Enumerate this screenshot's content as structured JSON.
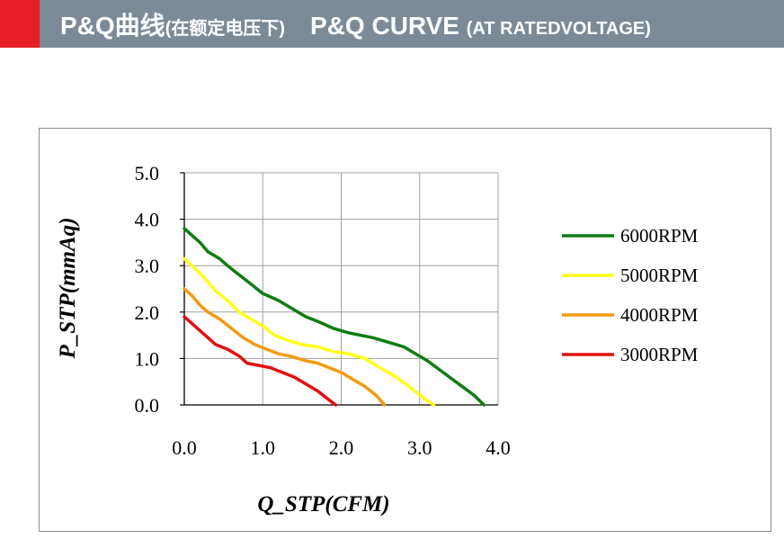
{
  "header": {
    "title_cn": "P&Q曲线",
    "subtitle_cn": "(在额定电压下)",
    "title_en": "P&Q CURVE",
    "subtitle_en": "(AT RATEDVOLTAGE)",
    "bar_color": "#7c8a98",
    "accent_color": "#e61e25"
  },
  "chart_data": {
    "type": "line",
    "title": "",
    "xlabel": "Q_STP(CFM)",
    "ylabel": "P_STP(mmAq)",
    "xlim": [
      0,
      4
    ],
    "ylim": [
      0,
      5
    ],
    "xticks": [
      "0.0",
      "1.0",
      "2.0",
      "3.0",
      "4.0"
    ],
    "yticks": [
      "0.0",
      "1.0",
      "2.0",
      "3.0",
      "4.0",
      "5.0"
    ],
    "grid": true,
    "legend_position": "right",
    "series": [
      {
        "name": "6000RPM",
        "color": "#0e7d12",
        "x": [
          0,
          0.1,
          0.2,
          0.3,
          0.45,
          0.55,
          0.7,
          0.85,
          1.0,
          1.2,
          1.4,
          1.55,
          1.7,
          1.9,
          2.1,
          2.4,
          2.6,
          2.8,
          2.95,
          3.1,
          3.3,
          3.5,
          3.7,
          3.82
        ],
        "y": [
          3.8,
          3.65,
          3.5,
          3.3,
          3.15,
          3.0,
          2.8,
          2.6,
          2.4,
          2.25,
          2.05,
          1.9,
          1.8,
          1.65,
          1.55,
          1.45,
          1.35,
          1.25,
          1.1,
          0.95,
          0.7,
          0.45,
          0.2,
          0.0
        ]
      },
      {
        "name": "5000RPM",
        "color": "#ffff1a",
        "x": [
          0,
          0.1,
          0.25,
          0.4,
          0.55,
          0.7,
          0.85,
          1.0,
          1.15,
          1.3,
          1.5,
          1.7,
          1.9,
          2.1,
          2.3,
          2.5,
          2.7,
          2.9,
          3.05,
          3.18
        ],
        "y": [
          3.15,
          3.0,
          2.75,
          2.45,
          2.25,
          2.0,
          1.85,
          1.7,
          1.5,
          1.4,
          1.3,
          1.25,
          1.15,
          1.1,
          1.0,
          0.8,
          0.6,
          0.35,
          0.15,
          0.0
        ]
      },
      {
        "name": "4000RPM",
        "color": "#f39b12",
        "x": [
          0,
          0.1,
          0.2,
          0.3,
          0.45,
          0.6,
          0.75,
          0.9,
          1.05,
          1.2,
          1.35,
          1.55,
          1.7,
          1.85,
          2.0,
          2.15,
          2.3,
          2.45,
          2.55
        ],
        "y": [
          2.5,
          2.35,
          2.15,
          2.0,
          1.85,
          1.65,
          1.45,
          1.3,
          1.2,
          1.1,
          1.05,
          0.95,
          0.9,
          0.8,
          0.7,
          0.55,
          0.4,
          0.2,
          0.0
        ]
      },
      {
        "name": "3000RPM",
        "color": "#e30e0e",
        "x": [
          0,
          0.1,
          0.2,
          0.3,
          0.4,
          0.55,
          0.7,
          0.8,
          0.95,
          1.1,
          1.25,
          1.4,
          1.55,
          1.7,
          1.85,
          1.93
        ],
        "y": [
          1.9,
          1.75,
          1.6,
          1.45,
          1.3,
          1.2,
          1.05,
          0.9,
          0.85,
          0.8,
          0.7,
          0.6,
          0.45,
          0.3,
          0.1,
          0.0
        ]
      }
    ]
  }
}
